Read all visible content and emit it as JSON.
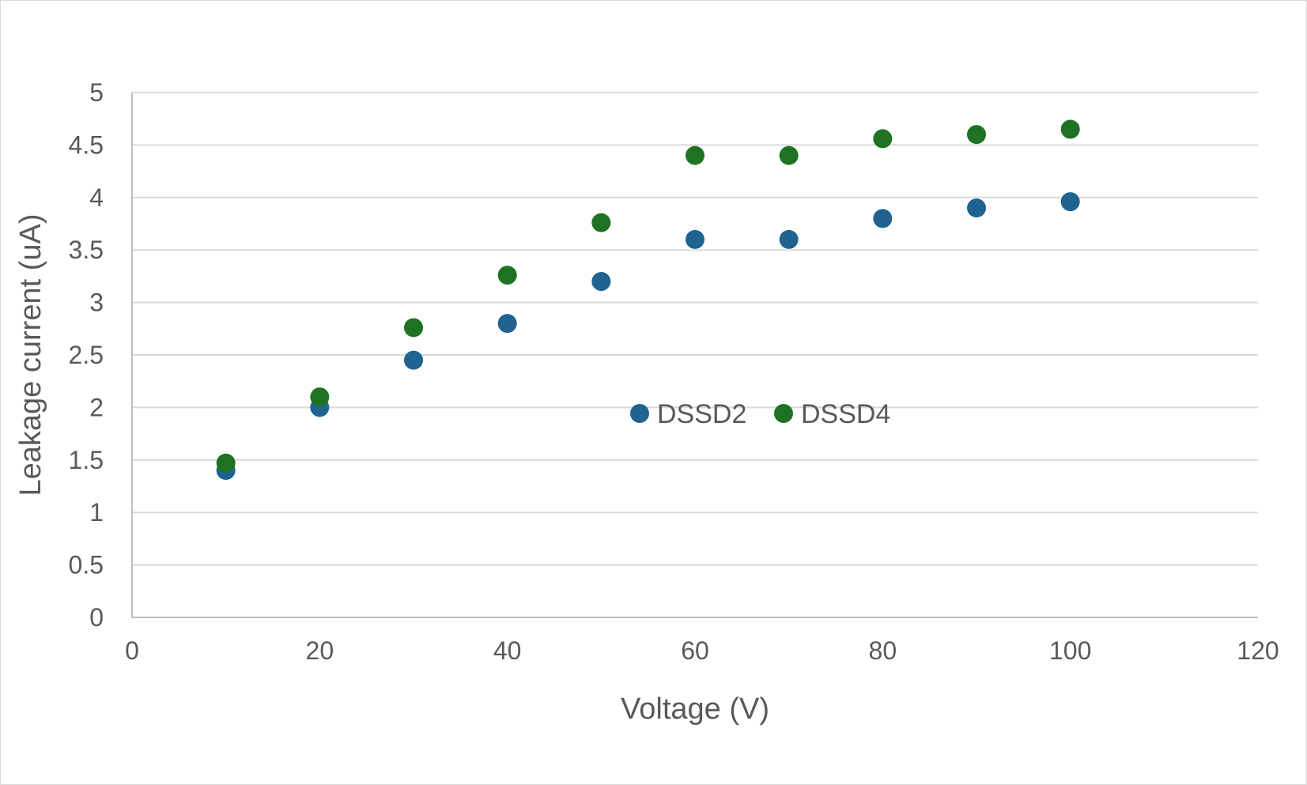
{
  "chart_data": {
    "type": "scatter",
    "title": "",
    "xlabel": "Voltage (V)",
    "ylabel": "Leakage current (uA)",
    "xlim": [
      0,
      120
    ],
    "ylim": [
      0,
      5
    ],
    "xticks": [
      0,
      20,
      40,
      60,
      80,
      100,
      120
    ],
    "yticks": [
      0,
      0.5,
      1,
      1.5,
      2,
      2.5,
      3,
      3.5,
      4,
      4.5,
      5
    ],
    "xtick_labels": [
      "0",
      "20",
      "40",
      "60",
      "80",
      "100",
      "120"
    ],
    "ytick_labels": [
      "0",
      "0.5",
      "1",
      "1.5",
      "2",
      "2.5",
      "3",
      "3.5",
      "4",
      "4.5",
      "5"
    ],
    "grid": "horizontal",
    "legend_position": "center",
    "series": [
      {
        "name": "DSSD2",
        "color": "#1f6391",
        "x": [
          10,
          20,
          30,
          40,
          50,
          60,
          70,
          80,
          90,
          100
        ],
        "y": [
          1.4,
          2.0,
          2.45,
          2.8,
          3.2,
          3.6,
          3.6,
          3.8,
          3.9,
          3.96
        ]
      },
      {
        "name": "DSSD4",
        "color": "#1e7323",
        "x": [
          10,
          20,
          30,
          40,
          50,
          60,
          70,
          80,
          90,
          100
        ],
        "y": [
          1.47,
          2.1,
          2.76,
          3.26,
          3.76,
          4.4,
          4.4,
          4.56,
          4.6,
          4.65
        ]
      }
    ]
  }
}
